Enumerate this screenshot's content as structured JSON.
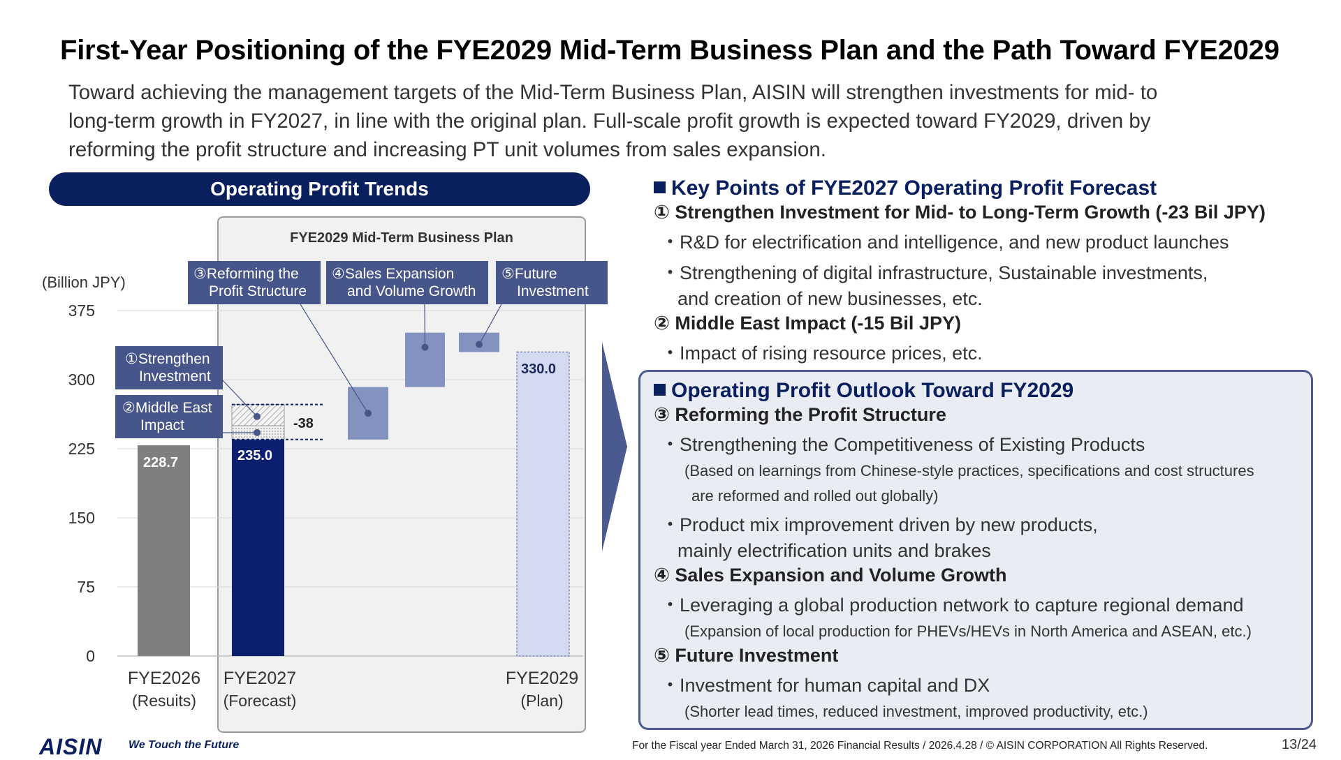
{
  "title": "First-Year Positioning of the FYE2029 Mid-Term Business Plan and the Path Toward FYE2029",
  "lead": [
    "Toward achieving the management targets of the Mid-Term Business Plan, AISIN will strengthen investments for mid- to",
    "long-term growth in FY2027, in line with the original plan. Full-scale profit growth is expected toward FY2029, driven by",
    "reforming the profit structure and increasing PT unit volumes from sales expansion."
  ],
  "chart_panel": {
    "heading": "Operating Profit Trends",
    "midplan_label": "FYE2029 Mid-Term Business Plan",
    "unit": "(Billion JPY)",
    "tags": {
      "t1": [
        "①Strengthen",
        "Investment"
      ],
      "t2": [
        "②Middle East",
        "Impact"
      ],
      "t3": [
        "③Reforming the",
        "Profit Structure"
      ],
      "t4": [
        "④Sales Expansion",
        "and Volume Growth"
      ],
      "t5": [
        "⑤Future",
        "Investment"
      ]
    },
    "x_labels": [
      [
        "FYE2026",
        "(Resuits)"
      ],
      [
        "FYE2027",
        "(Forecast)"
      ],
      [
        "FYE2029",
        "(Plan)"
      ]
    ]
  },
  "chart_data": {
    "type": "bar",
    "title": "Operating Profit Trends",
    "ylabel": "(Billion JPY)",
    "ylim": [
      0,
      375
    ],
    "yticks": [
      0,
      75,
      150,
      225,
      300,
      375
    ],
    "grid": true,
    "bars": [
      {
        "category": "FYE2026 (Resuits)",
        "value": 228.7,
        "label": "228.7",
        "color": "#7f7f7f"
      },
      {
        "category": "FYE2027 (Forecast)",
        "value": 235.0,
        "label": "235.0",
        "color": "#0a1f6e"
      },
      {
        "category": "FYE2029 (Plan)",
        "value": 330.0,
        "label": "330.0",
        "color": "#d4daef"
      }
    ],
    "forecast_deductions": {
      "label": "-38",
      "strengthen_investment": 23,
      "middle_east_impact": 15,
      "top": 273
    },
    "waterfall_steps": [
      {
        "name": "③Reforming the Profit Structure",
        "from": 235,
        "to": 292
      },
      {
        "name": "④Sales Expansion and Volume Growth",
        "from": 292,
        "to": 351
      },
      {
        "name": "⑤Future Investment",
        "from": 351,
        "to": 330
      }
    ],
    "colors": {
      "step": "#8492bf",
      "step_light": "#8492bf",
      "grid": "#d9d9d9"
    }
  },
  "key_points": {
    "title": "Key Points of FYE2027 Operating Profit Forecast",
    "h1": "① Strengthen Investment for Mid- to Long-Term Growth (-23 Bil JPY)",
    "b1": "・R&D for electrification and intelligence, and new product launches",
    "b2": "・Strengthening of digital infrastructure, Sustainable investments,",
    "b2c": "and creation of new businesses, etc.",
    "h2": "② Middle East Impact (-15 Bil JPY)",
    "b3": "・Impact of rising resource prices, etc."
  },
  "outlook": {
    "title": "Operating Profit Outlook Toward FY2029",
    "h3": "③ Reforming the Profit Structure",
    "b1": "・Strengthening the Competitiveness of Existing Products",
    "n1": "(Based on learnings from Chinese-style practices, specifications and cost structures",
    "n1c": "are reformed and rolled out globally)",
    "b2": "・Product mix improvement driven by new products,",
    "b2c": "mainly electrification units and brakes",
    "h4": "④ Sales Expansion and Volume Growth",
    "b3": "・Leveraging a global production network to capture regional demand",
    "n2": "(Expansion of local production for PHEVs/HEVs in North America and ASEAN, etc.)",
    "h5": "⑤ Future Investment",
    "b4": "・Investment for human capital and DX",
    "n3": "(Shorter lead times, reduced investment, improved productivity, etc.)"
  },
  "footer": {
    "logo": "AISIN",
    "tagline": "We Touch the Future",
    "text": "For the Fiscal year Ended March 31, 2026 Financial Results / 2026.4.28 / © AISIN CORPORATION All Rights Reserved.",
    "page": "13/24"
  }
}
